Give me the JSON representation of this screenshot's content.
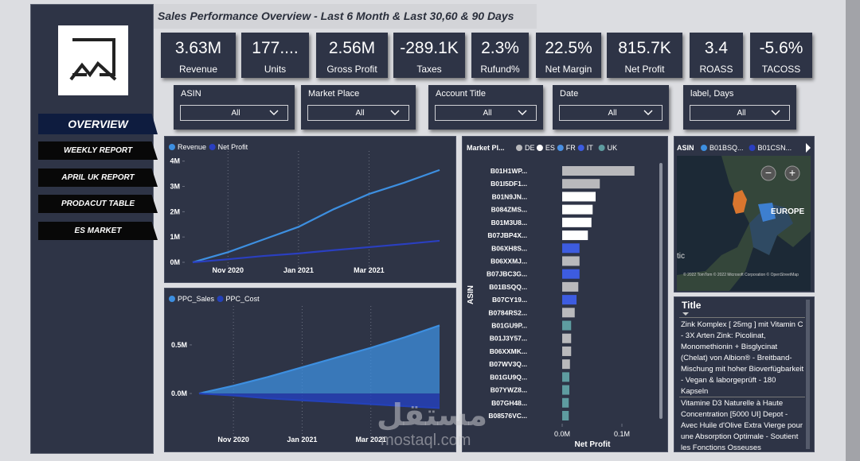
{
  "header": {
    "title": "Sales Performance Overview - Last 6 Month & Last 30,60 & 90 Days"
  },
  "nav": [
    "OVERVIEW",
    "WEEKLY REPORT",
    "APRIL UK REPORT",
    "PRODACUT TABLE",
    "ES MARKET"
  ],
  "kpis": [
    {
      "value": "3.63M",
      "label": "Revenue"
    },
    {
      "value": "177....",
      "label": "Units"
    },
    {
      "value": "2.56M",
      "label": "Gross Profit"
    },
    {
      "value": "-289.1K",
      "label": "Taxes"
    },
    {
      "value": "2.3%",
      "label": "Rufund%"
    },
    {
      "value": "22.5%",
      "label": "Net Margin"
    },
    {
      "value": "815.7K",
      "label": "Net Profit"
    },
    {
      "value": "3.4",
      "label": "ROASS"
    },
    {
      "value": "-5.6%",
      "label": "TACOSS"
    }
  ],
  "filters": [
    {
      "label": "ASIN",
      "value": "All"
    },
    {
      "label": "Market Place",
      "value": "All"
    },
    {
      "label": "Account Title",
      "value": "All"
    },
    {
      "label": "Date",
      "value": "All"
    },
    {
      "label": "label, Days",
      "value": "All"
    }
  ],
  "chart_data": [
    {
      "type": "line",
      "categories": [
        null,
        "Nov 2020",
        null,
        "Jan 2021",
        null,
        "Mar 2021",
        null,
        null
      ],
      "series": [
        {
          "name": "Revenue",
          "color": "#3d8fe0",
          "values": [
            0,
            0.4,
            0.9,
            1.4,
            2.1,
            2.7,
            3.15,
            3.65
          ]
        },
        {
          "name": "Net Profit",
          "color": "#2a3fc0",
          "values": [
            0,
            0.12,
            0.25,
            0.35,
            0.48,
            0.6,
            0.72,
            0.85
          ]
        }
      ],
      "ylim": [
        0,
        4.4
      ],
      "yticks": [
        {
          "value": 0,
          "label": "0M"
        },
        {
          "value": 1,
          "label": "1M"
        },
        {
          "value": 2,
          "label": "2M"
        },
        {
          "value": 3,
          "label": "3M"
        },
        {
          "value": 4,
          "label": "4M"
        }
      ],
      "grid": "x"
    },
    {
      "type": "area",
      "categories": [
        null,
        "Nov 2020",
        null,
        "Jan 2021",
        null,
        "Mar 2021",
        null,
        null
      ],
      "series": [
        {
          "name": "PPC_Sales",
          "color": "#3d8fe0",
          "values": [
            0,
            0.08,
            0.17,
            0.27,
            0.37,
            0.47,
            0.58,
            0.7
          ]
        },
        {
          "name": "PPC_Cost",
          "color": "#2441b8",
          "values": [
            0,
            -0.02,
            -0.05,
            -0.07,
            -0.09,
            -0.11,
            -0.13,
            -0.15
          ]
        }
      ],
      "ylim": [
        -0.4,
        0.9
      ],
      "yticks": [
        {
          "value": 0,
          "label": "0.0M"
        },
        {
          "value": 0.5,
          "label": "0.5M"
        }
      ],
      "grid": "x"
    },
    {
      "type": "bar",
      "horizontal": true,
      "legend_title": "Market Pl...",
      "legend": [
        {
          "name": "DE",
          "color": "#b9b9bc"
        },
        {
          "name": "ES",
          "color": "#ffffff"
        },
        {
          "name": "FR",
          "color": "#4a90e2"
        },
        {
          "name": "IT",
          "color": "#3d5ce0"
        },
        {
          "name": "UK",
          "color": "#5e9ca0"
        }
      ],
      "categories": [
        "B01H1WP...",
        "B01I5DF1...",
        "B01N9JN...",
        "B084ZMS...",
        "B01M3U8...",
        "B07JBP4X...",
        "B06XH8S...",
        "B06XXMJ...",
        "B07JBC3G...",
        "B01BSQQ...",
        "B07CY19...",
        "B0784RS2...",
        "B01GU9P...",
        "B01J3Y57...",
        "B06XXMK...",
        "B07WV3Q...",
        "B01GU9Q...",
        "B07YWZ8...",
        "B07GH48...",
        "B08576VC..."
      ],
      "values": [
        0.121,
        0.063,
        0.056,
        0.051,
        0.049,
        0.043,
        0.029,
        0.029,
        0.029,
        0.027,
        0.024,
        0.021,
        0.015,
        0.015,
        0.015,
        0.013,
        0.012,
        0.012,
        0.011,
        0.011
      ],
      "colors": [
        "#b9b9bc",
        "#b9b9bc",
        "#ffffff",
        "#ffffff",
        "#ffffff",
        "#ffffff",
        "#3d5ce0",
        "#b9b9bc",
        "#3d5ce0",
        "#b9b9bc",
        "#3d5ce0",
        "#b9b9bc",
        "#5e9ca0",
        "#b9b9bc",
        "#b9b9bc",
        "#b9b9bc",
        "#5e9ca0",
        "#5e9ca0",
        "#5e9ca0",
        "#5e9ca0"
      ],
      "xlim": [
        0,
        0.16
      ],
      "xticks": [
        {
          "value": 0,
          "label": "0.0M"
        },
        {
          "value": 0.1,
          "label": "0.1M"
        }
      ],
      "xlabel": "Net Profit",
      "ylabel": "ASIN"
    }
  ],
  "map": {
    "legend_title": "ASIN",
    "legend": [
      {
        "name": "B01BSQ...",
        "color": "#3d8fe0"
      },
      {
        "name": "B01CSN...",
        "color": "#2a3fc0"
      }
    ],
    "label": "EUROPE",
    "ocean_label": "tic",
    "attribution": "© 2022 TomTom © 2022 Microsoft Corporation © OpenStreetMap"
  },
  "table": {
    "header": "Title",
    "rows": [
      "Zink Komplex [ 25mg ] mit Vitamin C - 3X Arten Zink: Picolinat, Monomethionin + Bisglycinat (Chelat) von Albion® - Breitband-Mischung mit hoher Bioverfügbarkeit - Vegan & laborgeprüft - 180 Kapseln",
      "Vitamine D3 Naturelle à Haute Concentration [5000 UI] Depot - Avec Huile d'Olive Extra Vierge pour une Absorption Optimale - Soutient les Fonctions Osseuses"
    ]
  },
  "watermark": {
    "arabic": "مستقل",
    "latin": "mostaql.com"
  }
}
